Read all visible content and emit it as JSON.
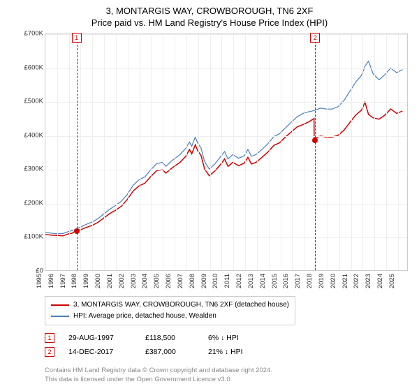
{
  "title": "3, MONTARGIS WAY, CROWBOROUGH, TN6 2XF",
  "subtitle": "Price paid vs. HM Land Registry's House Price Index (HPI)",
  "chart": {
    "type": "line",
    "background_color": "#ffffff",
    "grid_color": "#eeeeee",
    "border_color": "#cccccc",
    "xlim": [
      1995,
      2025.9
    ],
    "ylim": [
      0,
      700000
    ],
    "ytick_step": 100000,
    "ytick_labels": [
      "£0",
      "£100K",
      "£200K",
      "£300K",
      "£400K",
      "£500K",
      "£600K",
      "£700K"
    ],
    "xtick_step": 1,
    "xtick_labels": [
      "1995",
      "1996",
      "1997",
      "1998",
      "1999",
      "2000",
      "2001",
      "2002",
      "2003",
      "2004",
      "2005",
      "2006",
      "2007",
      "2008",
      "2009",
      "2010",
      "2011",
      "2012",
      "2013",
      "2014",
      "2015",
      "2016",
      "2017",
      "2018",
      "2019",
      "2020",
      "2021",
      "2022",
      "2023",
      "2024",
      "2025"
    ],
    "label_fontsize": 9.5,
    "title_fontsize": 13,
    "series": [
      {
        "name": "property",
        "label": "3, MONTARGIS WAY, CROWBOROUGH, TN6 2XF (detached house)",
        "color": "#d00000",
        "line_width": 1.5,
        "data": [
          [
            1995.0,
            106000
          ],
          [
            1995.5,
            104000
          ],
          [
            1996.0,
            103000
          ],
          [
            1996.5,
            102000
          ],
          [
            1997.0,
            108000
          ],
          [
            1997.3,
            110000
          ],
          [
            1997.65,
            118500
          ],
          [
            1998.0,
            120000
          ],
          [
            1998.5,
            127000
          ],
          [
            1999.0,
            133000
          ],
          [
            1999.5,
            142000
          ],
          [
            2000.0,
            155000
          ],
          [
            2000.5,
            168000
          ],
          [
            2001.0,
            178000
          ],
          [
            2001.5,
            190000
          ],
          [
            2002.0,
            210000
          ],
          [
            2002.5,
            235000
          ],
          [
            2003.0,
            250000
          ],
          [
            2003.5,
            258000
          ],
          [
            2004.0,
            278000
          ],
          [
            2004.5,
            295000
          ],
          [
            2005.0,
            298000
          ],
          [
            2005.3,
            288000
          ],
          [
            2005.7,
            300000
          ],
          [
            2006.0,
            308000
          ],
          [
            2006.5,
            320000
          ],
          [
            2007.0,
            338000
          ],
          [
            2007.3,
            358000
          ],
          [
            2007.5,
            345000
          ],
          [
            2007.8,
            372000
          ],
          [
            2008.0,
            355000
          ],
          [
            2008.3,
            340000
          ],
          [
            2008.6,
            300000
          ],
          [
            2009.0,
            280000
          ],
          [
            2009.5,
            295000
          ],
          [
            2010.0,
            315000
          ],
          [
            2010.3,
            330000
          ],
          [
            2010.6,
            308000
          ],
          [
            2011.0,
            320000
          ],
          [
            2011.5,
            310000
          ],
          [
            2012.0,
            318000
          ],
          [
            2012.3,
            335000
          ],
          [
            2012.6,
            315000
          ],
          [
            2013.0,
            320000
          ],
          [
            2013.5,
            335000
          ],
          [
            2014.0,
            350000
          ],
          [
            2014.5,
            370000
          ],
          [
            2015.0,
            378000
          ],
          [
            2015.5,
            395000
          ],
          [
            2016.0,
            410000
          ],
          [
            2016.5,
            425000
          ],
          [
            2017.0,
            432000
          ],
          [
            2017.5,
            440000
          ],
          [
            2017.95,
            450000
          ],
          [
            2017.96,
            387000
          ],
          [
            2018.0,
            392000
          ],
          [
            2018.5,
            398000
          ],
          [
            2019.0,
            395000
          ],
          [
            2019.5,
            395000
          ],
          [
            2020.0,
            400000
          ],
          [
            2020.5,
            415000
          ],
          [
            2021.0,
            438000
          ],
          [
            2021.5,
            460000
          ],
          [
            2022.0,
            475000
          ],
          [
            2022.3,
            498000
          ],
          [
            2022.6,
            462000
          ],
          [
            2023.0,
            452000
          ],
          [
            2023.5,
            448000
          ],
          [
            2024.0,
            460000
          ],
          [
            2024.5,
            478000
          ],
          [
            2025.0,
            465000
          ],
          [
            2025.5,
            472000
          ]
        ]
      },
      {
        "name": "hpi",
        "label": "HPI: Average price, detached house, Wealden",
        "color": "#4a7ebb",
        "line_width": 1.2,
        "data": [
          [
            1995.0,
            112000
          ],
          [
            1995.5,
            110000
          ],
          [
            1996.0,
            108000
          ],
          [
            1996.5,
            109000
          ],
          [
            1997.0,
            115000
          ],
          [
            1997.5,
            120000
          ],
          [
            1998.0,
            128000
          ],
          [
            1998.5,
            136000
          ],
          [
            1999.0,
            143000
          ],
          [
            1999.5,
            153000
          ],
          [
            2000.0,
            167000
          ],
          [
            2000.5,
            181000
          ],
          [
            2001.0,
            192000
          ],
          [
            2001.5,
            205000
          ],
          [
            2002.0,
            225000
          ],
          [
            2002.5,
            252000
          ],
          [
            2003.0,
            268000
          ],
          [
            2003.5,
            277000
          ],
          [
            2004.0,
            298000
          ],
          [
            2004.5,
            316000
          ],
          [
            2005.0,
            320000
          ],
          [
            2005.3,
            308000
          ],
          [
            2005.7,
            322000
          ],
          [
            2006.0,
            330000
          ],
          [
            2006.5,
            343000
          ],
          [
            2007.0,
            362000
          ],
          [
            2007.3,
            380000
          ],
          [
            2007.5,
            368000
          ],
          [
            2007.8,
            395000
          ],
          [
            2008.0,
            378000
          ],
          [
            2008.3,
            362000
          ],
          [
            2008.6,
            322000
          ],
          [
            2009.0,
            300000
          ],
          [
            2009.5,
            316000
          ],
          [
            2010.0,
            338000
          ],
          [
            2010.3,
            352000
          ],
          [
            2010.6,
            330000
          ],
          [
            2011.0,
            343000
          ],
          [
            2011.5,
            332000
          ],
          [
            2012.0,
            340000
          ],
          [
            2012.3,
            358000
          ],
          [
            2012.6,
            338000
          ],
          [
            2013.0,
            343000
          ],
          [
            2013.5,
            358000
          ],
          [
            2014.0,
            375000
          ],
          [
            2014.5,
            396000
          ],
          [
            2015.0,
            405000
          ],
          [
            2015.5,
            422000
          ],
          [
            2016.0,
            439000
          ],
          [
            2016.5,
            455000
          ],
          [
            2017.0,
            465000
          ],
          [
            2017.5,
            470000
          ],
          [
            2018.0,
            474000
          ],
          [
            2018.5,
            481000
          ],
          [
            2019.0,
            478000
          ],
          [
            2019.5,
            478000
          ],
          [
            2020.0,
            485000
          ],
          [
            2020.5,
            503000
          ],
          [
            2021.0,
            530000
          ],
          [
            2021.5,
            558000
          ],
          [
            2022.0,
            578000
          ],
          [
            2022.3,
            605000
          ],
          [
            2022.6,
            620000
          ],
          [
            2023.0,
            582000
          ],
          [
            2023.5,
            565000
          ],
          [
            2024.0,
            580000
          ],
          [
            2024.5,
            600000
          ],
          [
            2025.0,
            586000
          ],
          [
            2025.5,
            595000
          ]
        ]
      }
    ],
    "markers": [
      {
        "id": "1",
        "x": 1997.65,
        "y": 118500
      },
      {
        "id": "2",
        "x": 2017.96,
        "y": 387000
      }
    ]
  },
  "legend": {
    "items": [
      {
        "color": "#d00000",
        "label": "3, MONTARGIS WAY, CROWBOROUGH, TN6 2XF (detached house)"
      },
      {
        "color": "#4a7ebb",
        "label": "HPI: Average price, detached house, Wealden"
      }
    ]
  },
  "sales": [
    {
      "id": "1",
      "date": "29-AUG-1997",
      "price": "£118,500",
      "pct": "6% ↓ HPI"
    },
    {
      "id": "2",
      "date": "14-DEC-2017",
      "price": "£387,000",
      "pct": "21% ↓ HPI"
    }
  ],
  "footer": {
    "line1": "Contains HM Land Registry data © Crown copyright and database right 2024.",
    "line2": "This data is licensed under the Open Government Licence v3.0."
  }
}
